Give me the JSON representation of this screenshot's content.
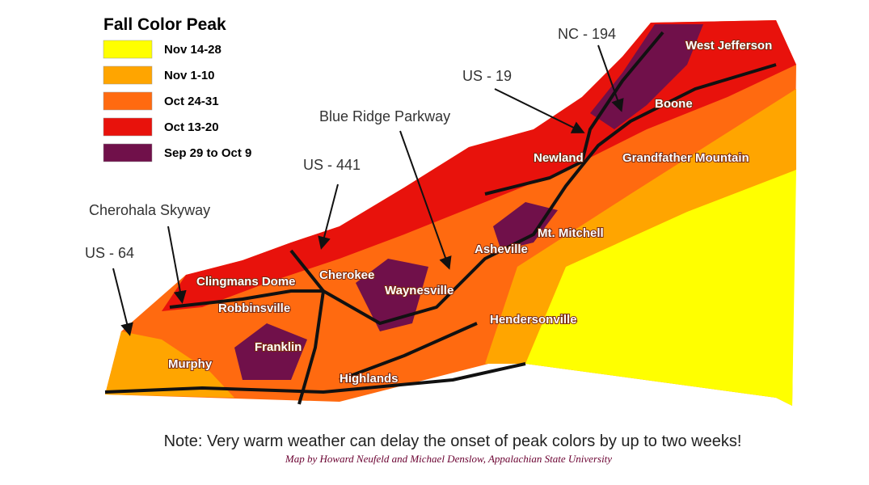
{
  "legend": {
    "title": "Fall Color Peak",
    "items": [
      {
        "label": "Nov 14-28",
        "color": "#ffff00"
      },
      {
        "label": "Nov 1-10",
        "color": "#ffa500"
      },
      {
        "label": "Oct 24-31",
        "color": "#ff6a10"
      },
      {
        "label": "Oct 13-20",
        "color": "#e8120c"
      },
      {
        "label": "Sep 29 to Oct 9",
        "color": "#70104a"
      }
    ]
  },
  "road_labels": [
    "NC - 194",
    "US - 19",
    "Blue Ridge Parkway",
    "US - 441",
    "Cherohala Skyway",
    "US - 64"
  ],
  "places": [
    "West Jefferson",
    "Boone",
    "Newland",
    "Grandfather Mountain",
    "Mt. Mitchell",
    "Asheville",
    "Cherokee",
    "Clingmans Dome",
    "Waynesville",
    "Robbinsville",
    "Hendersonville",
    "Franklin",
    "Murphy",
    "Highlands"
  ],
  "note": "Note: Very warm weather can delay the onset of peak colors by up to two weeks!",
  "credit": "Map by Howard Neufeld and Michael Denslow, Appalachian State University"
}
